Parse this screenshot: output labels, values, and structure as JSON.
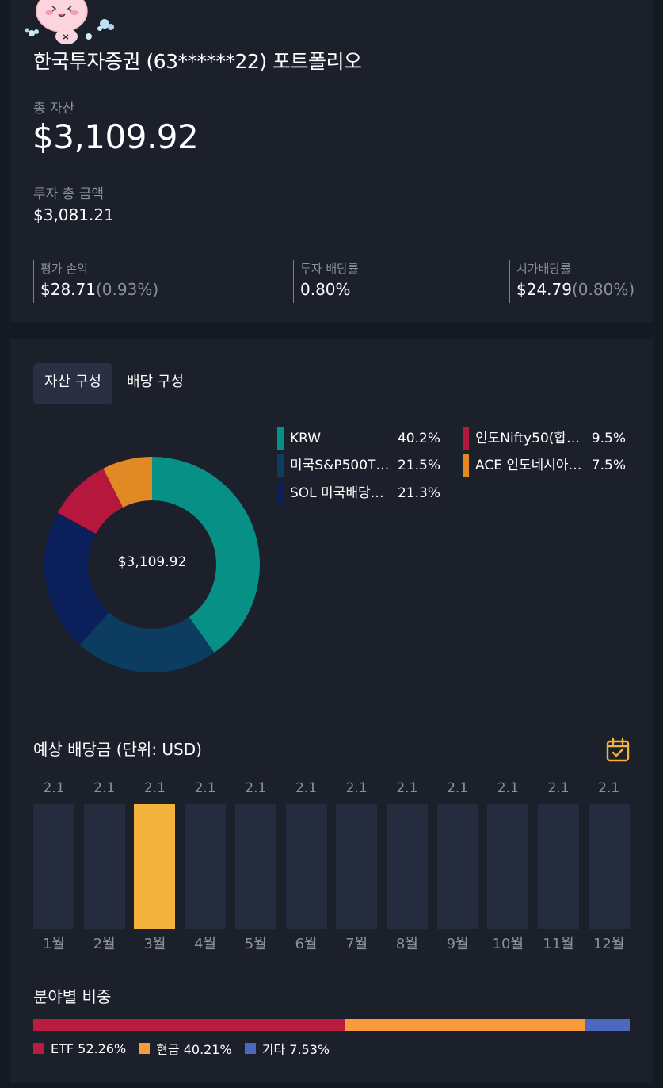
{
  "portfolio": {
    "title": "한국투자증권 (63******22) 포트폴리오",
    "total_asset_label": "총 자산",
    "total_asset_value": "$3,109.92",
    "invested_label": "투자 총 금액",
    "invested_value": "$3,081.21",
    "stats": [
      {
        "label": "평가 손익",
        "value": "$28.71",
        "sub": "(0.93%)"
      },
      {
        "label": "투자 배당률",
        "value": "0.80%",
        "sub": ""
      },
      {
        "label": "시가배당률",
        "value": "$24.79",
        "sub": "(0.80%)"
      }
    ]
  },
  "tabs": [
    {
      "label": "자산 구성",
      "active": true
    },
    {
      "label": "배당 구성",
      "active": false
    }
  ],
  "composition": {
    "center_label": "$3,109.92",
    "items": [
      {
        "name": "KRW",
        "percent": "40.2%",
        "value": 40.2,
        "color": "#069086"
      },
      {
        "name": "미국S&P500T…",
        "percent": "21.5%",
        "value": 21.5,
        "color": "#0c3c60"
      },
      {
        "name": "SOL 미국배당…",
        "percent": "21.3%",
        "value": 21.3,
        "color": "#0b1f5a"
      },
      {
        "name": "인도Nifty50(합…",
        "percent": "9.5%",
        "value": 9.5,
        "color": "#b6173d"
      },
      {
        "name": "ACE 인도네시아…",
        "percent": "7.5%",
        "value": 7.5,
        "color": "#e08925"
      }
    ]
  },
  "dividends": {
    "title": "예상 배당금 (단위: USD)",
    "calendar_icon": "calendar-check-icon",
    "highlight_color": "#f3b33d",
    "bar_color": "#252c3e",
    "months": [
      {
        "label": "1월",
        "value": "2.1",
        "highlight": false
      },
      {
        "label": "2월",
        "value": "2.1",
        "highlight": false
      },
      {
        "label": "3월",
        "value": "2.1",
        "highlight": true
      },
      {
        "label": "4월",
        "value": "2.1",
        "highlight": false
      },
      {
        "label": "5월",
        "value": "2.1",
        "highlight": false
      },
      {
        "label": "6월",
        "value": "2.1",
        "highlight": false
      },
      {
        "label": "7월",
        "value": "2.1",
        "highlight": false
      },
      {
        "label": "8월",
        "value": "2.1",
        "highlight": false
      },
      {
        "label": "9월",
        "value": "2.1",
        "highlight": false
      },
      {
        "label": "10월",
        "value": "2.1",
        "highlight": false
      },
      {
        "label": "11월",
        "value": "2.1",
        "highlight": false
      },
      {
        "label": "12월",
        "value": "2.1",
        "highlight": false
      }
    ]
  },
  "sectors": {
    "title": "분야별 비중",
    "items": [
      {
        "name": "ETF",
        "percent": "52.26%",
        "value": 52.26,
        "color": "#b91c3f"
      },
      {
        "name": "현금",
        "percent": "40.21%",
        "value": 40.21,
        "color": "#f89b3c"
      },
      {
        "name": "기타",
        "percent": "7.53%",
        "value": 7.53,
        "color": "#4d68c1"
      }
    ]
  }
}
